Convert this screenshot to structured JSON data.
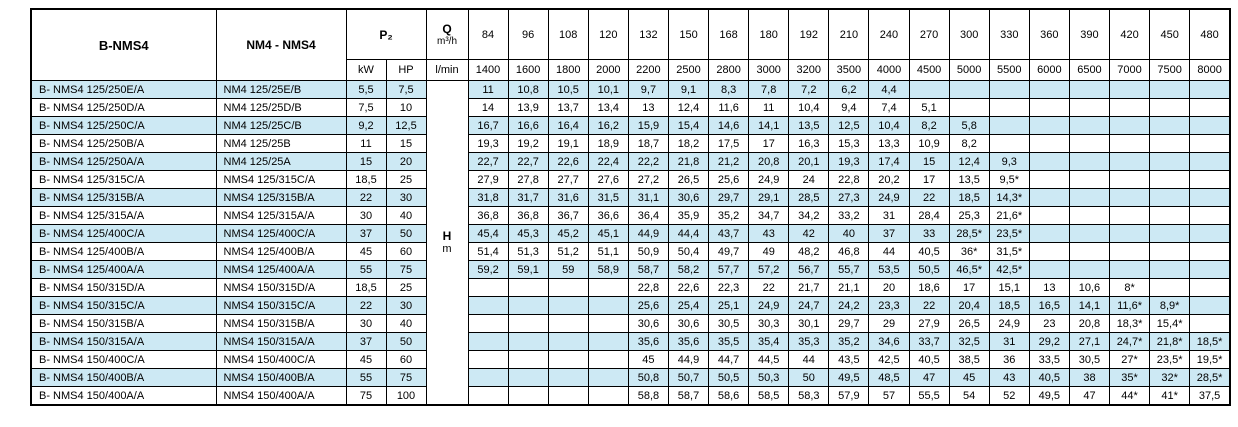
{
  "colors": {
    "stripe": "#cde9f4",
    "border": "#000000",
    "background": "#ffffff"
  },
  "table": {
    "headers": {
      "col_model_b": "B-NMS4",
      "col_model_nm": "NM4 - NMS4",
      "p2": "P₂",
      "p2_units": [
        "kW",
        "HP"
      ],
      "q": "Q",
      "q_unit": "m³/h",
      "q_unit_lmin": "l/min",
      "h": "H",
      "h_unit": "m",
      "flow_m3h": [
        "84",
        "96",
        "108",
        "120",
        "132",
        "150",
        "168",
        "180",
        "192",
        "210",
        "240",
        "270",
        "300",
        "330",
        "360",
        "390",
        "420",
        "450",
        "480"
      ],
      "flow_lmin": [
        "1400",
        "1600",
        "1800",
        "2000",
        "2200",
        "2500",
        "2800",
        "3000",
        "3200",
        "3500",
        "4000",
        "4500",
        "5000",
        "5500",
        "6000",
        "6500",
        "7000",
        "7500",
        "8000"
      ]
    },
    "rows": [
      {
        "model_b": "B- NMS4 125/250E/A",
        "model_nm": "NM4 125/25E/B",
        "kw": "5,5",
        "hp": "7,5",
        "values": [
          "11",
          "10,8",
          "10,5",
          "10,1",
          "9,7",
          "9,1",
          "8,3",
          "7,8",
          "7,2",
          "6,2",
          "4,4",
          "",
          "",
          "",
          "",
          "",
          "",
          "",
          ""
        ]
      },
      {
        "model_b": "B- NMS4 125/250D/A",
        "model_nm": "NM4 125/25D/B",
        "kw": "7,5",
        "hp": "10",
        "values": [
          "14",
          "13,9",
          "13,7",
          "13,4",
          "13",
          "12,4",
          "11,6",
          "11",
          "10,4",
          "9,4",
          "7,4",
          "5,1",
          "",
          "",
          "",
          "",
          "",
          "",
          ""
        ]
      },
      {
        "model_b": "B- NMS4 125/250C/A",
        "model_nm": "NM4 125/25C/B",
        "kw": "9,2",
        "hp": "12,5",
        "values": [
          "16,7",
          "16,6",
          "16,4",
          "16,2",
          "15,9",
          "15,4",
          "14,6",
          "14,1",
          "13,5",
          "12,5",
          "10,4",
          "8,2",
          "5,8",
          "",
          "",
          "",
          "",
          "",
          ""
        ]
      },
      {
        "model_b": "B- NMS4 125/250B/A",
        "model_nm": "NM4 125/25B",
        "kw": "11",
        "hp": "15",
        "values": [
          "19,3",
          "19,2",
          "19,1",
          "18,9",
          "18,7",
          "18,2",
          "17,5",
          "17",
          "16,3",
          "15,3",
          "13,3",
          "10,9",
          "8,2",
          "",
          "",
          "",
          "",
          "",
          ""
        ]
      },
      {
        "model_b": "B- NMS4 125/250A/A",
        "model_nm": "NM4 125/25A",
        "kw": "15",
        "hp": "20",
        "values": [
          "22,7",
          "22,7",
          "22,6",
          "22,4",
          "22,2",
          "21,8",
          "21,2",
          "20,8",
          "20,1",
          "19,3",
          "17,4",
          "15",
          "12,4",
          "9,3",
          "",
          "",
          "",
          "",
          ""
        ]
      },
      {
        "model_b": "B- NMS4 125/315C/A",
        "model_nm": "NMS4 125/315C/A",
        "kw": "18,5",
        "hp": "25",
        "values": [
          "27,9",
          "27,8",
          "27,7",
          "27,6",
          "27,2",
          "26,5",
          "25,6",
          "24,9",
          "24",
          "22,8",
          "20,2",
          "17",
          "13,5",
          "9,5*",
          "",
          "",
          "",
          "",
          ""
        ]
      },
      {
        "model_b": "B- NMS4 125/315B/A",
        "model_nm": "NMS4 125/315B/A",
        "kw": "22",
        "hp": "30",
        "values": [
          "31,8",
          "31,7",
          "31,6",
          "31,5",
          "31,1",
          "30,6",
          "29,7",
          "29,1",
          "28,5",
          "27,3",
          "24,9",
          "22",
          "18,5",
          "14,3*",
          "",
          "",
          "",
          "",
          ""
        ]
      },
      {
        "model_b": "B- NMS4 125/315A/A",
        "model_nm": "NMS4 125/315A/A",
        "kw": "30",
        "hp": "40",
        "values": [
          "36,8",
          "36,8",
          "36,7",
          "36,6",
          "36,4",
          "35,9",
          "35,2",
          "34,7",
          "34,2",
          "33,2",
          "31",
          "28,4",
          "25,3",
          "21,6*",
          "",
          "",
          "",
          "",
          ""
        ]
      },
      {
        "model_b": "B- NMS4 125/400C/A",
        "model_nm": "NMS4 125/400C/A",
        "kw": "37",
        "hp": "50",
        "values": [
          "45,4",
          "45,3",
          "45,2",
          "45,1",
          "44,9",
          "44,4",
          "43,7",
          "43",
          "42",
          "40",
          "37",
          "33",
          "28,5*",
          "23,5*",
          "",
          "",
          "",
          "",
          ""
        ]
      },
      {
        "model_b": "B- NMS4 125/400B/A",
        "model_nm": "NMS4 125/400B/A",
        "kw": "45",
        "hp": "60",
        "values": [
          "51,4",
          "51,3",
          "51,2",
          "51,1",
          "50,9",
          "50,4",
          "49,7",
          "49",
          "48,2",
          "46,8",
          "44",
          "40,5",
          "36*",
          "31,5*",
          "",
          "",
          "",
          "",
          ""
        ]
      },
      {
        "model_b": "B- NMS4 125/400A/A",
        "model_nm": "NMS4 125/400A/A",
        "kw": "55",
        "hp": "75",
        "values": [
          "59,2",
          "59,1",
          "59",
          "58,9",
          "58,7",
          "58,2",
          "57,7",
          "57,2",
          "56,7",
          "55,7",
          "53,5",
          "50,5",
          "46,5*",
          "42,5*",
          "",
          "",
          "",
          "",
          ""
        ]
      },
      {
        "model_b": "B- NMS4 150/315D/A",
        "model_nm": "NMS4 150/315D/A",
        "kw": "18,5",
        "hp": "25",
        "values": [
          "",
          "",
          "",
          "",
          "22,8",
          "22,6",
          "22,3",
          "22",
          "21,7",
          "21,1",
          "20",
          "18,6",
          "17",
          "15,1",
          "13",
          "10,6",
          "8*",
          "",
          ""
        ]
      },
      {
        "model_b": "B- NMS4 150/315C/A",
        "model_nm": "NMS4 150/315C/A",
        "kw": "22",
        "hp": "30",
        "values": [
          "",
          "",
          "",
          "",
          "25,6",
          "25,4",
          "25,1",
          "24,9",
          "24,7",
          "24,2",
          "23,3",
          "22",
          "20,4",
          "18,5",
          "16,5",
          "14,1",
          "11,6*",
          "8,9*",
          ""
        ]
      },
      {
        "model_b": "B- NMS4 150/315B/A",
        "model_nm": "NMS4 150/315B/A",
        "kw": "30",
        "hp": "40",
        "values": [
          "",
          "",
          "",
          "",
          "30,6",
          "30,6",
          "30,5",
          "30,3",
          "30,1",
          "29,7",
          "29",
          "27,9",
          "26,5",
          "24,9",
          "23",
          "20,8",
          "18,3*",
          "15,4*",
          ""
        ]
      },
      {
        "model_b": "B- NMS4 150/315A/A",
        "model_nm": "NMS4 150/315A/A",
        "kw": "37",
        "hp": "50",
        "values": [
          "",
          "",
          "",
          "",
          "35,6",
          "35,6",
          "35,5",
          "35,4",
          "35,3",
          "35,2",
          "34,6",
          "33,7",
          "32,5",
          "31",
          "29,2",
          "27,1",
          "24,7*",
          "21,8*",
          "18,5*"
        ]
      },
      {
        "model_b": "B- NMS4 150/400C/A",
        "model_nm": "NMS4 150/400C/A",
        "kw": "45",
        "hp": "60",
        "values": [
          "",
          "",
          "",
          "",
          "45",
          "44,9",
          "44,7",
          "44,5",
          "44",
          "43,5",
          "42,5",
          "40,5",
          "38,5",
          "36",
          "33,5",
          "30,5",
          "27*",
          "23,5*",
          "19,5*"
        ]
      },
      {
        "model_b": "B- NMS4 150/400B/A",
        "model_nm": "NMS4 150/400B/A",
        "kw": "55",
        "hp": "75",
        "values": [
          "",
          "",
          "",
          "",
          "50,8",
          "50,7",
          "50,5",
          "50,3",
          "50",
          "49,5",
          "48,5",
          "47",
          "45",
          "43",
          "40,5",
          "38",
          "35*",
          "32*",
          "28,5*"
        ]
      },
      {
        "model_b": "B- NMS4 150/400A/A",
        "model_nm": "NMS4 150/400A/A",
        "kw": "75",
        "hp": "100",
        "values": [
          "",
          "",
          "",
          "",
          "58,8",
          "58,7",
          "58,6",
          "58,5",
          "58,3",
          "57,9",
          "57",
          "55,5",
          "54",
          "52",
          "49,5",
          "47",
          "44*",
          "41*",
          "37,5"
        ]
      }
    ]
  }
}
